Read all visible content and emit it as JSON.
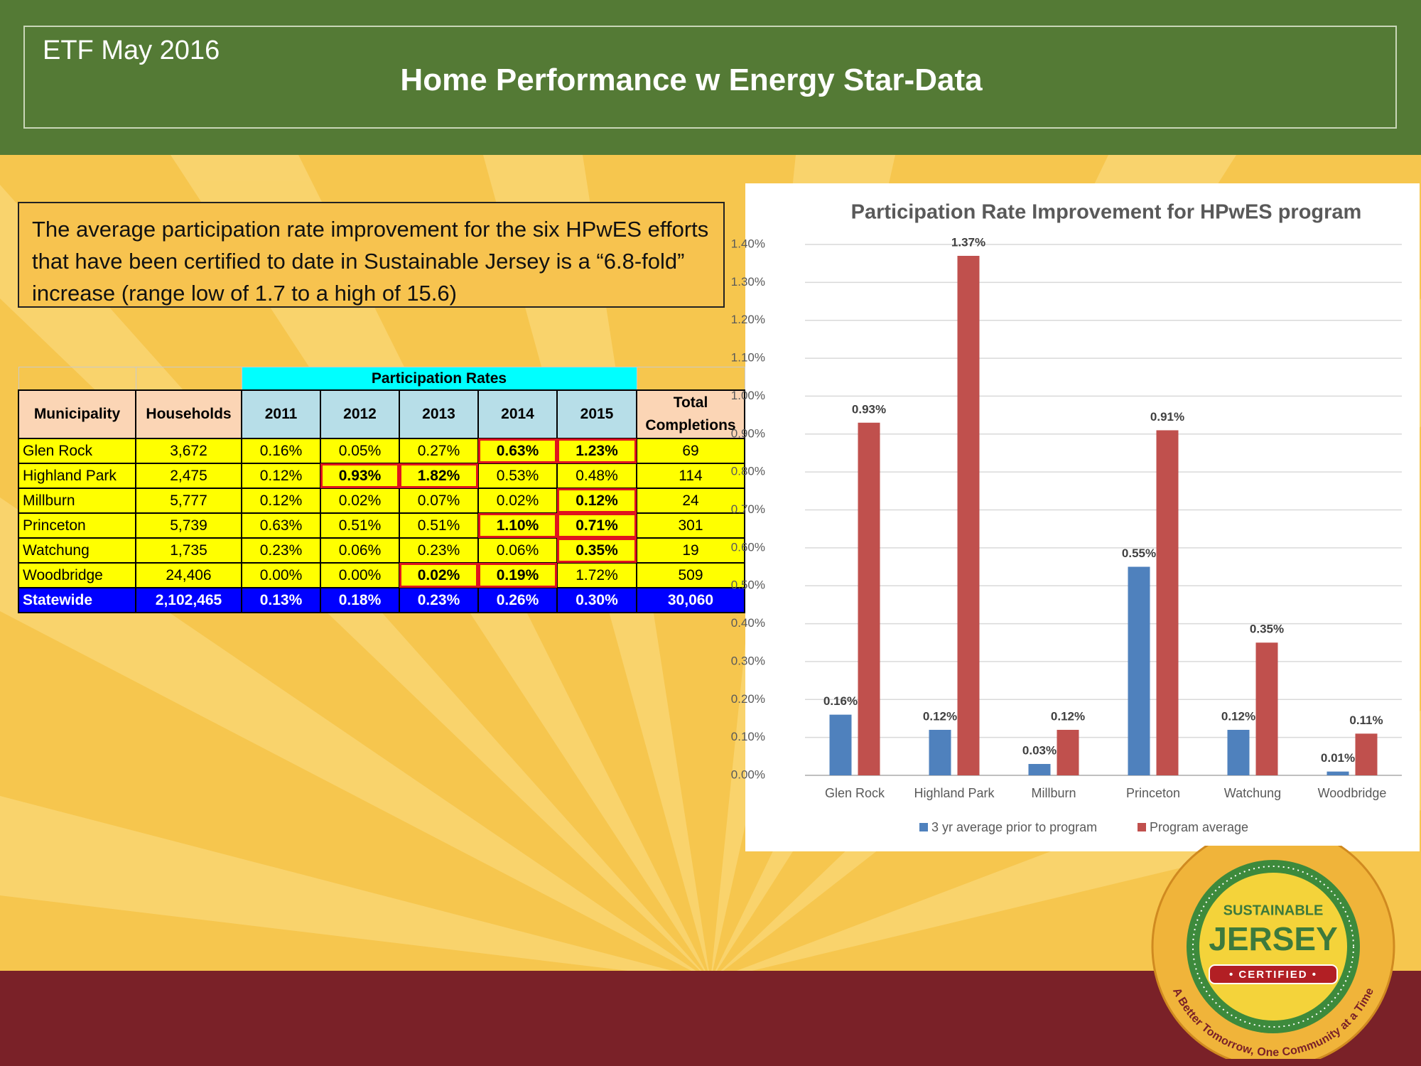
{
  "header": {
    "date": "ETF May 2016",
    "title": "Home Performance w Energy Star-Data"
  },
  "callout": "The average participation rate improvement for the six HPwES efforts that have been certified to date in Sustainable Jersey is a “6.8-fold” increase (range low of 1.7 to a high of 15.6)",
  "table": {
    "group_header": "Participation Rates",
    "columns": [
      "Municipality",
      "Households",
      "2011",
      "2012",
      "2013",
      "2014",
      "2015",
      "Total Completions"
    ],
    "rows": [
      [
        "Glen Rock",
        "3,672",
        "0.16%",
        "0.05%",
        "0.27%",
        "0.63%",
        "1.23%",
        "69"
      ],
      [
        "Highland Park",
        "2,475",
        "0.12%",
        "0.93%",
        "1.82%",
        "0.53%",
        "0.48%",
        "114"
      ],
      [
        "Millburn",
        "5,777",
        "0.12%",
        "0.02%",
        "0.07%",
        "0.02%",
        "0.12%",
        "24"
      ],
      [
        "Princeton",
        "5,739",
        "0.63%",
        "0.51%",
        "0.51%",
        "1.10%",
        "0.71%",
        "301"
      ],
      [
        "Watchung",
        "1,735",
        "0.23%",
        "0.06%",
        "0.23%",
        "0.06%",
        "0.35%",
        "19"
      ],
      [
        "Woodbridge",
        "24,406",
        "0.00%",
        "0.00%",
        "0.02%",
        "0.19%",
        "1.72%",
        "509"
      ],
      [
        "Statewide",
        "2,102,465",
        "0.13%",
        "0.18%",
        "0.23%",
        "0.26%",
        "0.30%",
        "30,060"
      ]
    ]
  },
  "chart_data": {
    "type": "bar",
    "title": "Participation Rate Improvement for HPwES program",
    "categories": [
      "Glen Rock",
      "Highland Park",
      "Millburn",
      "Princeton",
      "Watchung",
      "Woodbridge"
    ],
    "series": [
      {
        "name": "3 yr average prior to program",
        "color": "#4f81bd",
        "values": [
          0.16,
          0.12,
          0.03,
          0.55,
          0.12,
          0.01
        ],
        "value_labels": [
          "0.16%",
          "0.12%",
          "0.03%",
          "0.55%",
          "0.12%",
          "0.01%"
        ]
      },
      {
        "name": "Program average",
        "color": "#c0504d",
        "values": [
          0.93,
          1.37,
          0.12,
          0.91,
          0.35,
          0.11
        ],
        "value_labels": [
          "0.93%",
          "1.37%",
          "0.12%",
          "0.91%",
          "0.35%",
          "0.11%"
        ]
      }
    ],
    "ylim": [
      0,
      1.4
    ],
    "yticks": [
      {
        "value": 0,
        "label": "0.00%"
      },
      {
        "value": 0.1,
        "label": "0.10%"
      },
      {
        "value": 0.2,
        "label": "0.20%"
      },
      {
        "value": 0.3,
        "label": "0.30%"
      },
      {
        "value": 0.4,
        "label": "0.40%"
      },
      {
        "value": 0.5,
        "label": "0.50%"
      },
      {
        "value": 0.6,
        "label": "0.60%"
      },
      {
        "value": 0.7,
        "label": "0.70%"
      },
      {
        "value": 0.8,
        "label": "0.80%"
      },
      {
        "value": 0.9,
        "label": "0.90%"
      },
      {
        "value": 1,
        "label": "1.00%"
      },
      {
        "value": 1.1,
        "label": "1.10%"
      },
      {
        "value": 1.2,
        "label": "1.20%"
      },
      {
        "value": 1.3,
        "label": "1.30%"
      },
      {
        "value": 1.4,
        "label": "1.40%"
      }
    ],
    "grid": true,
    "legend": "bottom"
  },
  "logo": {
    "top": "SUSTAINABLE",
    "main": "JERSEY",
    "badge": "• CERTIFIED •",
    "motto": "A Better Tomorrow, One Community at a Time"
  }
}
